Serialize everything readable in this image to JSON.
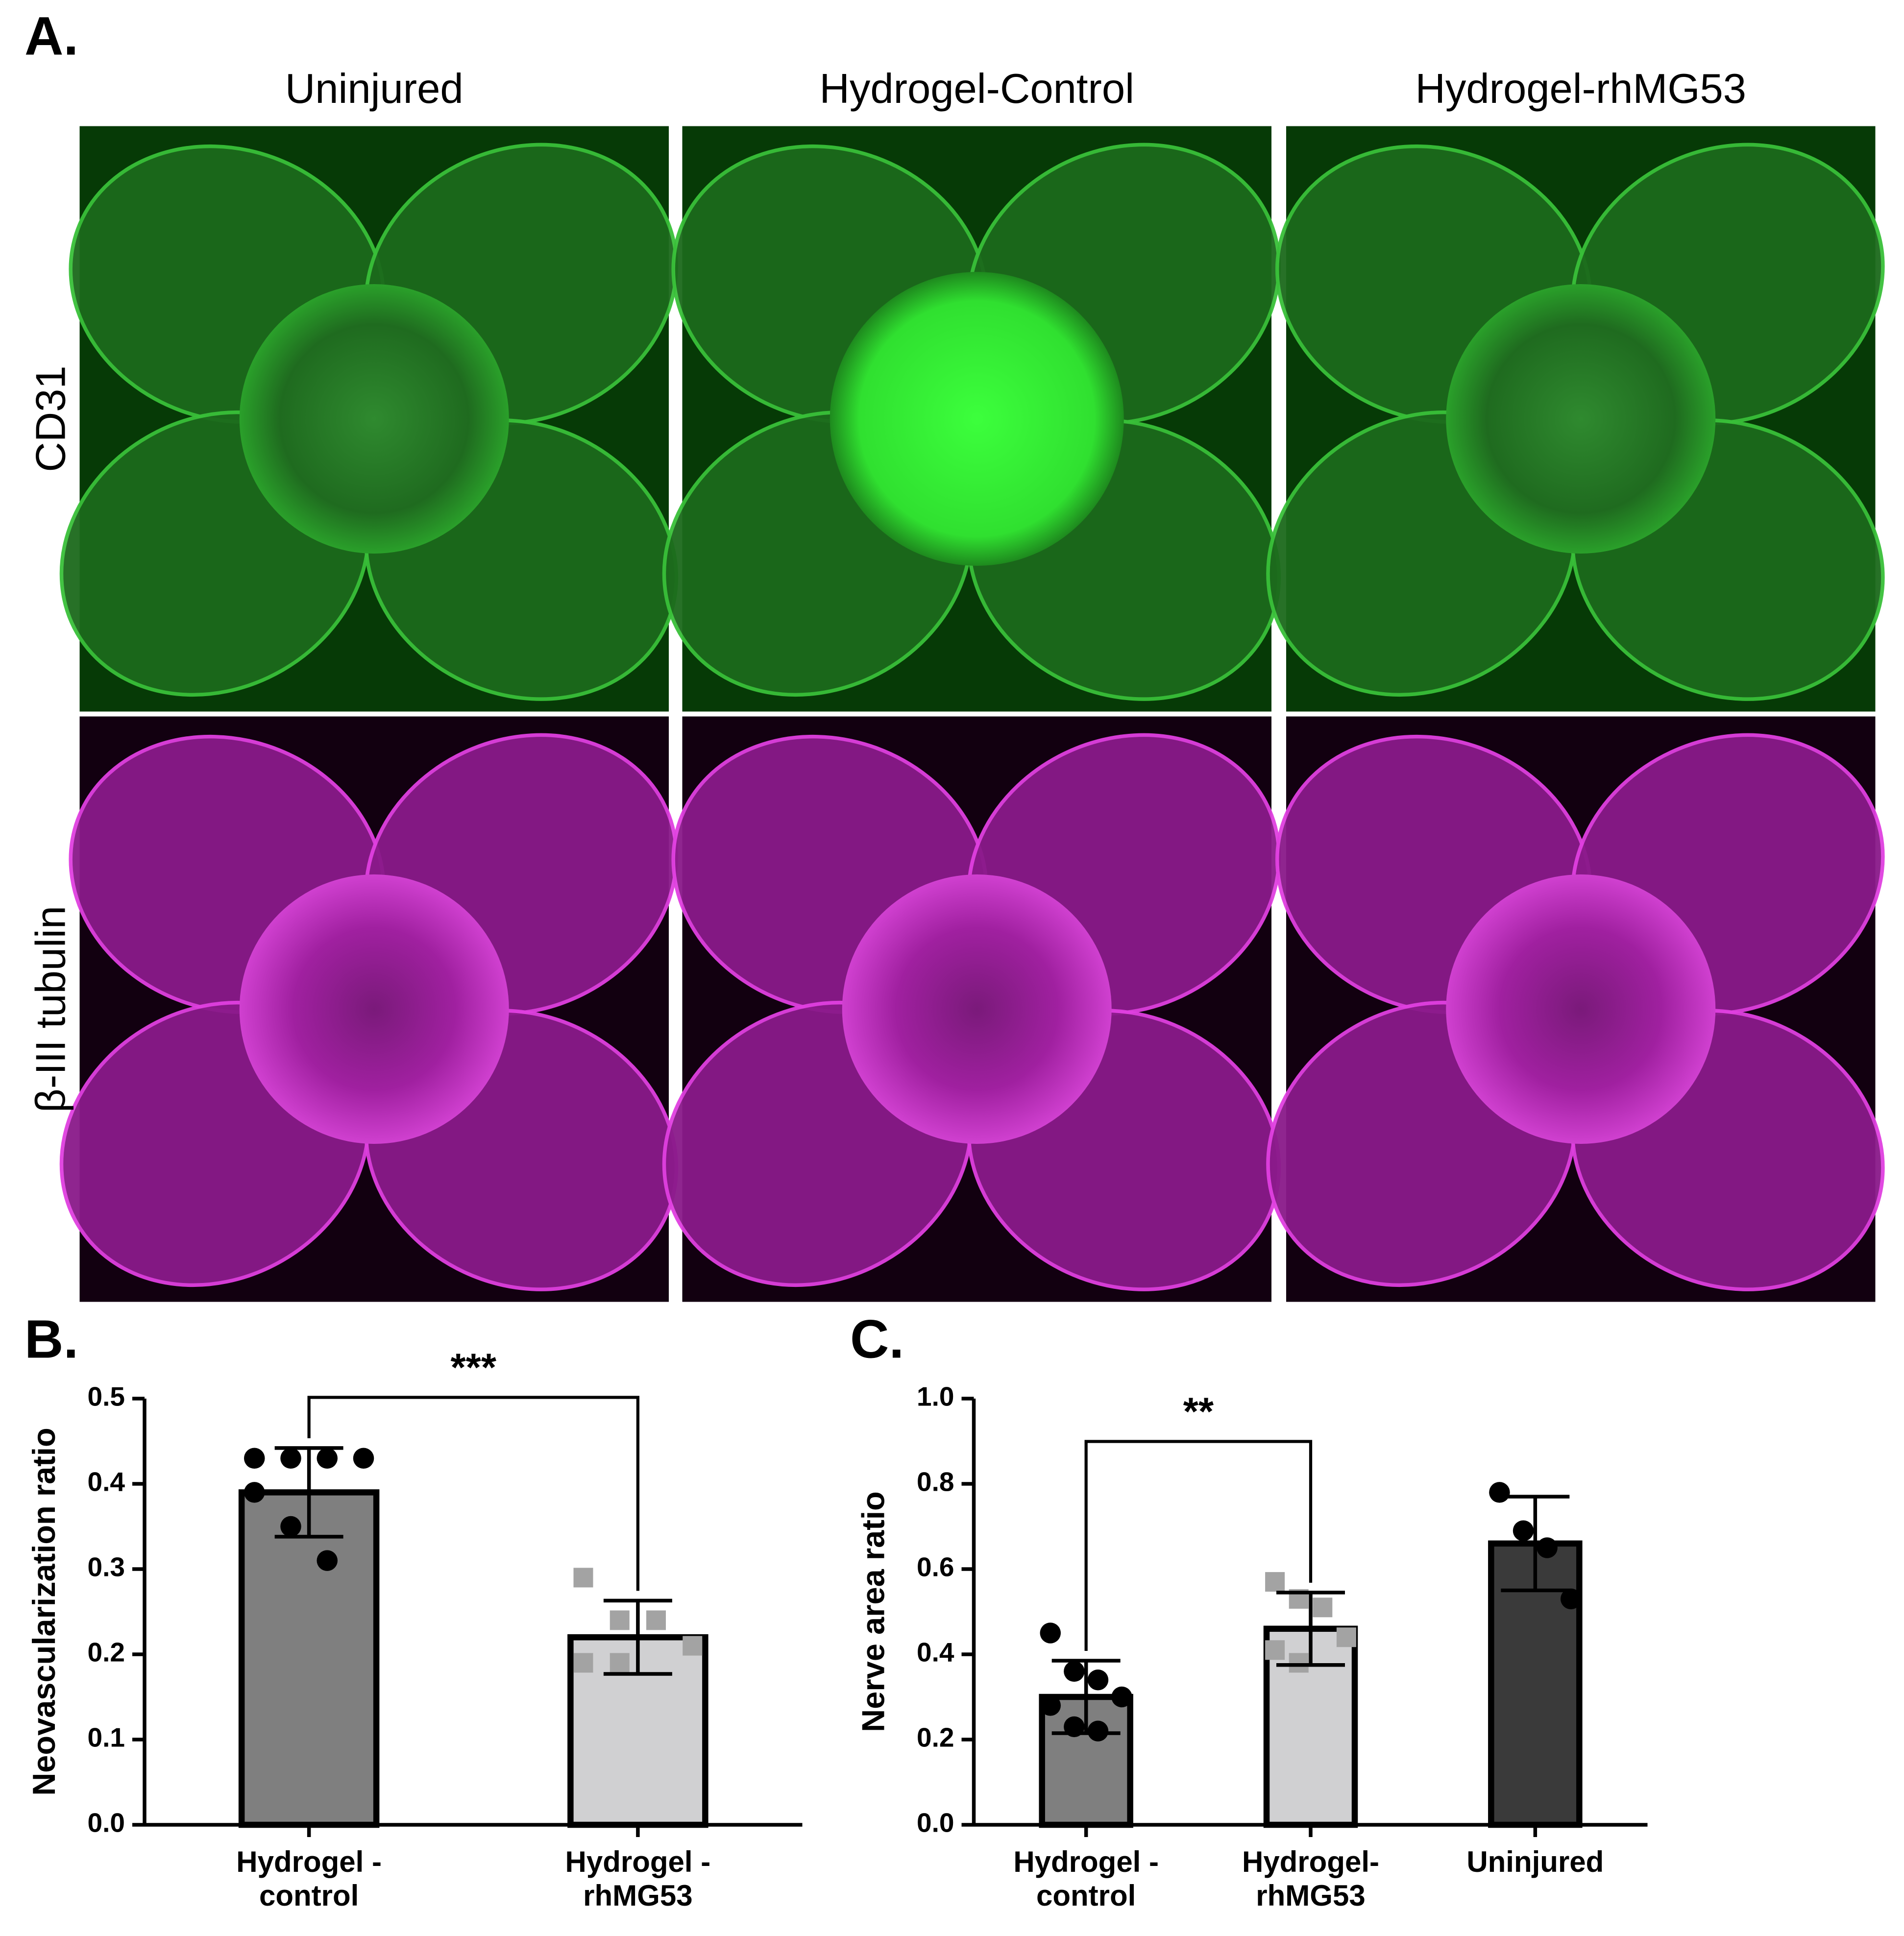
{
  "panel_labels": [
    "A.",
    "B.",
    "C."
  ],
  "image_panel": {
    "columns": [
      "Uninjured",
      "Hydrogel-Control",
      "Hydrogel-rhMG53"
    ],
    "rows": [
      "CD31",
      "β-III tubulin"
    ]
  },
  "chart_data": [
    {
      "type": "bar",
      "y_label": "Neovascularization ratio",
      "categories": [
        "Hydrogel -\ncontrol",
        "Hydrogel -\nrhMG53"
      ],
      "values": [
        0.39,
        0.22
      ],
      "errors": [
        0.052,
        0.043
      ],
      "colors": [
        "#7f7f7f",
        "#d0d0d2"
      ],
      "points": [
        [
          0.43,
          0.43,
          0.43,
          0.43,
          0.39,
          0.35,
          0.31
        ],
        [
          0.29,
          0.24,
          0.24,
          0.21,
          0.19,
          0.19
        ]
      ],
      "point_markers": [
        "circle",
        "square"
      ],
      "point_colors": [
        "#000000",
        "#a3a3a3"
      ],
      "ylim": [
        0,
        0.5
      ],
      "yticks": [
        {
          "value": 0,
          "label": "0.0"
        },
        0.1,
        0.2,
        0.3,
        0.4,
        0.5
      ],
      "brackets": [
        {
          "label": "***",
          "between": [
            0,
            1
          ]
        }
      ]
    },
    {
      "type": "bar",
      "y_label": "Nerve area ratio",
      "categories": [
        "Hydrogel -\ncontrol",
        "Hydrogel-\nrhMG53",
        "Uninjured"
      ],
      "values": [
        0.3,
        0.46,
        0.66
      ],
      "errors": [
        0.085,
        0.085,
        0.11
      ],
      "colors": [
        "#7f7f7f",
        "#d0d0d2",
        "#3a3a3a"
      ],
      "points": [
        [
          0.45,
          0.36,
          0.34,
          0.3,
          0.28,
          0.23,
          0.22
        ],
        [
          0.57,
          0.53,
          0.51,
          0.44,
          0.41,
          0.38
        ],
        [
          0.78,
          0.69,
          0.65,
          0.53
        ]
      ],
      "point_markers": [
        "circle",
        "square",
        "circle"
      ],
      "point_colors": [
        "#000000",
        "#a3a3a3",
        "#000000"
      ],
      "ylim": [
        0,
        1
      ],
      "yticks": [
        {
          "value": 0,
          "label": "0.0"
        },
        0.2,
        0.4,
        0.6,
        0.8,
        {
          "value": 1,
          "label": "1.0"
        }
      ],
      "brackets": [
        {
          "label": "**",
          "between": [
            0,
            1
          ]
        }
      ]
    }
  ]
}
